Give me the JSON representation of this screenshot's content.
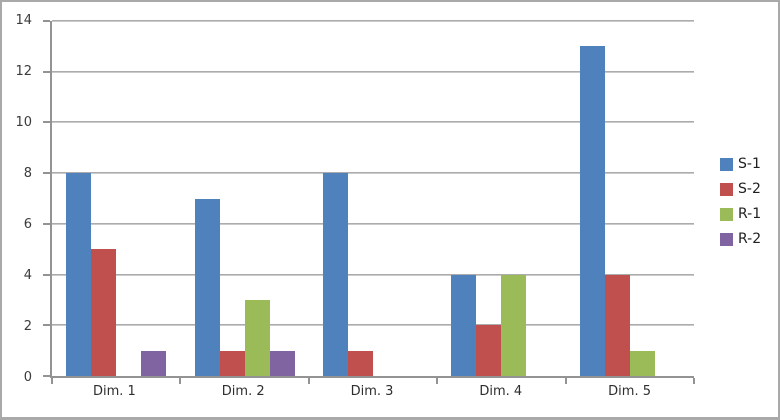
{
  "chart_data": {
    "type": "bar",
    "title": "",
    "categories": [
      "Dim. 1",
      "Dim. 2",
      "Dim. 3",
      "Dim. 4",
      "Dim. 5"
    ],
    "series": [
      {
        "name": "S-1",
        "color": "#4f81bd",
        "values": [
          8,
          7,
          8,
          4,
          13
        ]
      },
      {
        "name": "S-2",
        "color": "#c0504d",
        "values": [
          5,
          1,
          1,
          2,
          4
        ]
      },
      {
        "name": "R-1",
        "color": "#9bbb59",
        "values": [
          0,
          3,
          0,
          4,
          1
        ]
      },
      {
        "name": "R-2",
        "color": "#8064a2",
        "values": [
          1,
          1,
          0,
          0,
          0
        ]
      }
    ],
    "ylim": [
      0,
      14
    ],
    "yticks": [
      0,
      2,
      4,
      6,
      8,
      10,
      12,
      14
    ],
    "xlabel": "",
    "ylabel": "",
    "grid": true,
    "legend_position": "right"
  },
  "style": {
    "gridline_color": "#a6a6a6",
    "axis_color": "#939393",
    "text_color": "#2e2e2e",
    "frame_border_color": "#a9a9a9",
    "background": "#ffffff"
  }
}
